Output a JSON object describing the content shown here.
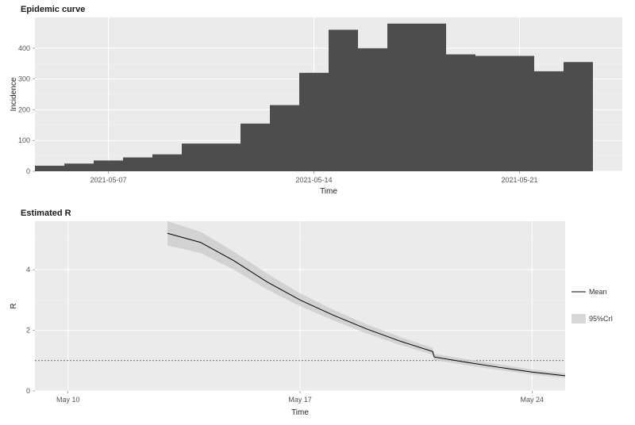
{
  "figure_width": 800,
  "figure_height": 534,
  "page_background": "#ffffff",
  "panel_background": "#ebebeb",
  "grid_major_color": "#ffffff",
  "grid_minor_color": "#f5f5f5",
  "top_panel": {
    "type": "bar",
    "title": "Epidemic curve",
    "title_fontsize": 11,
    "xlabel": "Time",
    "ylabel": "Incidence",
    "label_fontsize": 10,
    "tick_fontsize": 9,
    "bar_color": "#4d4d4d",
    "bar_width": 1.0,
    "ylim": [
      0,
      500
    ],
    "ytick_step": 100,
    "y_ticks": [
      0,
      100,
      200,
      300,
      400
    ],
    "x_ticks": [
      {
        "idx": 2,
        "label": "2021-05-07"
      },
      {
        "idx": 9,
        "label": "2021-05-14"
      },
      {
        "idx": 16,
        "label": "2021-05-21"
      }
    ],
    "categories_idx": [
      0,
      1,
      2,
      3,
      4,
      5,
      6,
      7,
      8,
      9,
      10,
      11,
      12,
      13,
      14,
      15,
      16,
      17,
      18
    ],
    "values": [
      18,
      25,
      35,
      45,
      55,
      90,
      90,
      155,
      215,
      320,
      460,
      400,
      480,
      480,
      380,
      375,
      375,
      325,
      355
    ]
  },
  "bottom_panel": {
    "type": "line",
    "title": "Estimated R",
    "title_fontsize": 11,
    "xlabel": "Time",
    "ylabel": "R",
    "label_fontsize": 10,
    "tick_fontsize": 9,
    "line_color": "#000000",
    "line_width": 1,
    "ci_fill": "#c8c8c8",
    "ci_opacity": 0.7,
    "threshold_value": 1.0,
    "threshold_style": "dotted",
    "threshold_color": "#444444",
    "ylim": [
      0,
      5.6
    ],
    "y_ticks": [
      0,
      2,
      4
    ],
    "x_domain_idx": [
      4,
      20
    ],
    "x_ticks": [
      {
        "idx": 5,
        "label": "May 10"
      },
      {
        "idx": 12,
        "label": "May 17"
      },
      {
        "idx": 19,
        "label": "May 24"
      }
    ],
    "curve": {
      "x_idx": [
        8,
        9,
        10,
        11,
        12,
        13,
        14,
        15,
        16,
        16.05,
        17,
        18,
        19,
        20
      ],
      "mean": [
        5.2,
        4.9,
        4.3,
        3.6,
        3.0,
        2.5,
        2.05,
        1.65,
        1.3,
        1.12,
        0.95,
        0.78,
        0.62,
        0.5
      ],
      "lower": [
        4.8,
        4.55,
        4.0,
        3.35,
        2.8,
        2.33,
        1.9,
        1.52,
        1.2,
        1.02,
        0.85,
        0.69,
        0.54,
        0.43
      ],
      "upper": [
        5.6,
        5.25,
        4.6,
        3.88,
        3.22,
        2.68,
        2.2,
        1.79,
        1.42,
        1.22,
        1.05,
        0.88,
        0.71,
        0.58
      ]
    },
    "legend": {
      "items": [
        {
          "kind": "line",
          "label": "Mean",
          "color": "#000000"
        },
        {
          "kind": "swatch",
          "label": "95%CrI",
          "color": "#c8c8c8",
          "opacity": 0.7
        }
      ],
      "fontsize": 9
    }
  }
}
